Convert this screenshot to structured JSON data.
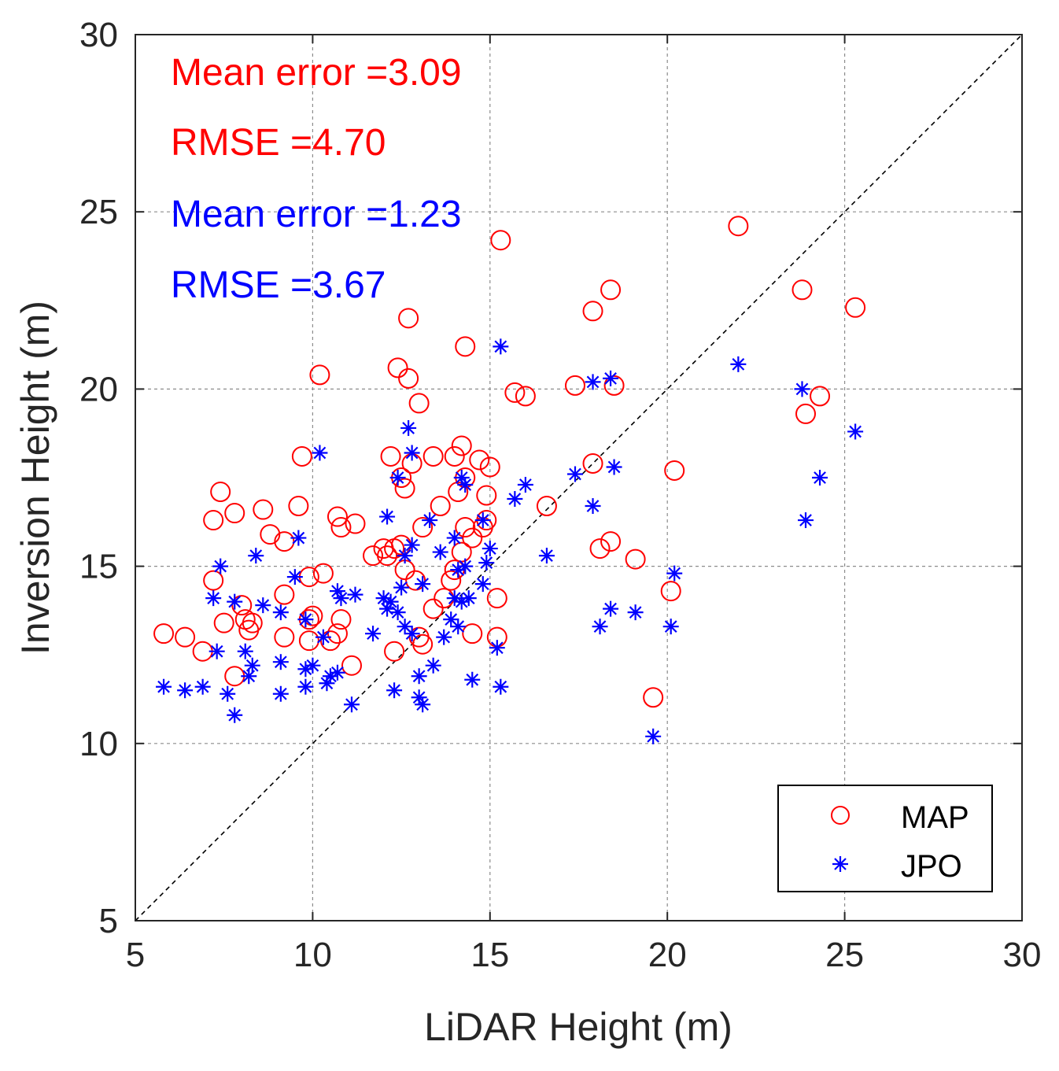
{
  "chart_data": {
    "type": "scatter",
    "title": "",
    "xlabel": "LiDAR Height (m)",
    "ylabel": "Inversion Height (m)",
    "xlim": [
      5,
      30
    ],
    "ylim": [
      5,
      30
    ],
    "xticks": [
      5,
      10,
      15,
      20,
      25,
      30
    ],
    "yticks": [
      5,
      10,
      15,
      20,
      25,
      30
    ],
    "grid": true,
    "reference_line": {
      "type": "1:1",
      "style": "dashed",
      "color": "#000000"
    },
    "legend": {
      "position": "bottom-right",
      "entries": [
        "MAP",
        "JPO"
      ]
    },
    "annotations": [
      {
        "text": "Mean error =3.09",
        "color": "#ff0000"
      },
      {
        "text": "RMSE =4.70",
        "color": "#ff0000"
      },
      {
        "text": "Mean error =1.23",
        "color": "#0000ff"
      },
      {
        "text": "RMSE =3.67",
        "color": "#0000ff"
      }
    ],
    "series": [
      {
        "name": "MAP",
        "marker": "circle",
        "color": "#ff0000",
        "points": [
          [
            5.8,
            13.1
          ],
          [
            6.4,
            13.0
          ],
          [
            6.9,
            12.6
          ],
          [
            7.2,
            14.6
          ],
          [
            7.2,
            16.3
          ],
          [
            7.4,
            17.1
          ],
          [
            7.5,
            13.4
          ],
          [
            7.8,
            16.5
          ],
          [
            7.8,
            11.9
          ],
          [
            8.0,
            13.9
          ],
          [
            8.1,
            13.5
          ],
          [
            8.2,
            13.2
          ],
          [
            8.3,
            13.4
          ],
          [
            8.6,
            16.6
          ],
          [
            8.8,
            15.9
          ],
          [
            9.2,
            15.7
          ],
          [
            9.2,
            14.2
          ],
          [
            9.2,
            13.0
          ],
          [
            9.6,
            16.7
          ],
          [
            9.7,
            18.1
          ],
          [
            9.9,
            14.7
          ],
          [
            9.9,
            13.5
          ],
          [
            9.9,
            12.9
          ],
          [
            10.0,
            13.6
          ],
          [
            10.2,
            20.4
          ],
          [
            10.3,
            14.8
          ],
          [
            10.5,
            12.9
          ],
          [
            10.7,
            16.4
          ],
          [
            10.7,
            13.1
          ],
          [
            10.8,
            13.5
          ],
          [
            10.8,
            16.1
          ],
          [
            11.1,
            12.2
          ],
          [
            11.2,
            16.2
          ],
          [
            11.7,
            15.3
          ],
          [
            12.0,
            15.5
          ],
          [
            12.1,
            15.3
          ],
          [
            12.2,
            18.1
          ],
          [
            12.3,
            15.5
          ],
          [
            12.3,
            12.6
          ],
          [
            12.4,
            20.6
          ],
          [
            12.5,
            17.5
          ],
          [
            12.5,
            15.6
          ],
          [
            12.6,
            17.2
          ],
          [
            12.6,
            14.9
          ],
          [
            12.7,
            22.0
          ],
          [
            12.7,
            20.3
          ],
          [
            12.8,
            17.9
          ],
          [
            12.9,
            14.6
          ],
          [
            13.0,
            19.6
          ],
          [
            13.0,
            13.0
          ],
          [
            13.1,
            12.8
          ],
          [
            13.1,
            16.1
          ],
          [
            13.4,
            18.1
          ],
          [
            13.4,
            13.8
          ],
          [
            13.6,
            16.7
          ],
          [
            13.7,
            14.1
          ],
          [
            13.9,
            14.6
          ],
          [
            14.0,
            18.1
          ],
          [
            14.0,
            14.9
          ],
          [
            14.1,
            17.1
          ],
          [
            14.2,
            18.4
          ],
          [
            14.2,
            15.4
          ],
          [
            14.3,
            21.2
          ],
          [
            14.3,
            17.5
          ],
          [
            14.3,
            16.1
          ],
          [
            14.5,
            15.8
          ],
          [
            14.5,
            13.1
          ],
          [
            14.7,
            18.0
          ],
          [
            14.8,
            16.1
          ],
          [
            14.9,
            16.3
          ],
          [
            14.9,
            17.0
          ],
          [
            15.0,
            17.8
          ],
          [
            15.2,
            14.1
          ],
          [
            15.2,
            13.0
          ],
          [
            15.3,
            24.2
          ],
          [
            15.7,
            19.9
          ],
          [
            16.0,
            19.8
          ],
          [
            16.6,
            16.7
          ],
          [
            17.4,
            20.1
          ],
          [
            17.9,
            22.2
          ],
          [
            17.9,
            17.9
          ],
          [
            18.1,
            15.5
          ],
          [
            18.4,
            15.7
          ],
          [
            18.4,
            22.8
          ],
          [
            18.5,
            20.1
          ],
          [
            19.1,
            15.2
          ],
          [
            19.6,
            11.3
          ],
          [
            20.1,
            14.3
          ],
          [
            20.2,
            17.7
          ],
          [
            22.0,
            24.6
          ],
          [
            23.8,
            22.8
          ],
          [
            23.9,
            19.3
          ],
          [
            24.3,
            19.8
          ],
          [
            25.3,
            22.3
          ]
        ]
      },
      {
        "name": "JPO",
        "marker": "asterisk",
        "color": "#0000ff",
        "points": [
          [
            5.8,
            11.6
          ],
          [
            6.4,
            11.5
          ],
          [
            6.9,
            11.6
          ],
          [
            7.2,
            14.1
          ],
          [
            7.3,
            12.6
          ],
          [
            7.4,
            15.0
          ],
          [
            7.6,
            11.4
          ],
          [
            7.8,
            14.0
          ],
          [
            7.8,
            10.8
          ],
          [
            8.1,
            12.6
          ],
          [
            8.2,
            11.9
          ],
          [
            8.3,
            12.2
          ],
          [
            8.4,
            15.3
          ],
          [
            8.6,
            13.9
          ],
          [
            9.1,
            13.7
          ],
          [
            9.1,
            12.3
          ],
          [
            9.1,
            11.4
          ],
          [
            9.5,
            14.7
          ],
          [
            9.6,
            15.8
          ],
          [
            9.8,
            13.5
          ],
          [
            9.8,
            12.1
          ],
          [
            9.8,
            11.6
          ],
          [
            10.0,
            12.2
          ],
          [
            10.2,
            18.2
          ],
          [
            10.3,
            13.0
          ],
          [
            10.4,
            11.7
          ],
          [
            10.5,
            11.9
          ],
          [
            10.7,
            14.3
          ],
          [
            10.7,
            12.0
          ],
          [
            10.8,
            14.1
          ],
          [
            11.1,
            11.1
          ],
          [
            11.2,
            14.2
          ],
          [
            11.7,
            13.1
          ],
          [
            12.0,
            14.1
          ],
          [
            12.1,
            13.8
          ],
          [
            12.1,
            16.4
          ],
          [
            12.2,
            14.0
          ],
          [
            12.3,
            11.5
          ],
          [
            12.4,
            17.5
          ],
          [
            12.4,
            13.7
          ],
          [
            12.5,
            14.4
          ],
          [
            12.6,
            13.3
          ],
          [
            12.6,
            15.3
          ],
          [
            12.7,
            18.9
          ],
          [
            12.8,
            18.2
          ],
          [
            12.8,
            13.1
          ],
          [
            12.8,
            15.6
          ],
          [
            13.0,
            11.9
          ],
          [
            13.0,
            11.3
          ],
          [
            13.1,
            11.1
          ],
          [
            13.1,
            14.5
          ],
          [
            13.3,
            16.3
          ],
          [
            13.4,
            12.2
          ],
          [
            13.6,
            15.4
          ],
          [
            13.7,
            13.0
          ],
          [
            13.9,
            13.5
          ],
          [
            14.0,
            14.1
          ],
          [
            14.0,
            15.8
          ],
          [
            14.1,
            13.3
          ],
          [
            14.1,
            14.9
          ],
          [
            14.2,
            17.5
          ],
          [
            14.2,
            14.0
          ],
          [
            14.3,
            15.0
          ],
          [
            14.3,
            17.3
          ],
          [
            14.4,
            14.1
          ],
          [
            14.5,
            11.8
          ],
          [
            14.8,
            14.5
          ],
          [
            14.8,
            16.3
          ],
          [
            14.9,
            15.1
          ],
          [
            15.0,
            15.5
          ],
          [
            15.2,
            12.7
          ],
          [
            15.3,
            11.6
          ],
          [
            15.3,
            21.2
          ],
          [
            15.7,
            16.9
          ],
          [
            16.0,
            17.3
          ],
          [
            16.6,
            15.3
          ],
          [
            17.4,
            17.6
          ],
          [
            17.9,
            20.2
          ],
          [
            17.9,
            16.7
          ],
          [
            18.1,
            13.3
          ],
          [
            18.4,
            13.8
          ],
          [
            18.4,
            20.3
          ],
          [
            18.5,
            17.8
          ],
          [
            19.1,
            13.7
          ],
          [
            19.6,
            10.2
          ],
          [
            20.1,
            13.3
          ],
          [
            20.2,
            14.8
          ],
          [
            22.0,
            20.7
          ],
          [
            23.8,
            20.0
          ],
          [
            23.9,
            16.3
          ],
          [
            24.3,
            17.5
          ],
          [
            25.3,
            18.8
          ]
        ]
      }
    ]
  }
}
